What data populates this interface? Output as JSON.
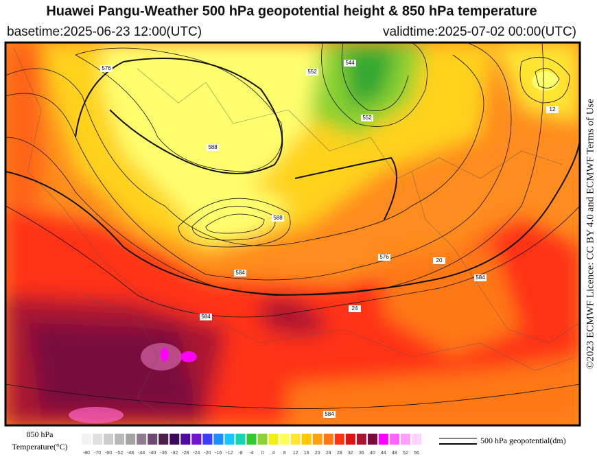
{
  "header": {
    "title": "Huawei Pangu-Weather 500 hPa geopotential height & 850 hPa temperature",
    "basetime": "basetime:2025-06-23 12:00(UTC)",
    "validtime": "validtime:2025-07-02 00:00(UTC)"
  },
  "side_note": "©2023 ECMWF Licence: CC BY 4.0 and ECMWF Terms of Use",
  "map": {
    "contour_labels": [
      "584",
      "588",
      "576",
      "552",
      "584",
      "588",
      "584",
      "12",
      "20",
      "24",
      "584",
      "576",
      "552",
      "544"
    ]
  },
  "colorbar": {
    "title_line1": "850 hPa",
    "title_line2": "Temperature(°C)",
    "ticks": [
      "-80",
      "-70",
      "-60",
      "-52",
      "-48",
      "-44",
      "-40",
      "-36",
      "-32",
      "-28",
      "-24",
      "-20",
      "-16",
      "-12",
      "-8",
      "-4",
      "0",
      "4",
      "8",
      "12",
      "16",
      "20",
      "24",
      "28",
      "32",
      "36",
      "40",
      "44",
      "48",
      "52",
      "56"
    ],
    "colors": [
      "#f2f2f2",
      "#e0e0e0",
      "#cccccc",
      "#b8b8b8",
      "#a4a4a4",
      "#8e7b8e",
      "#6e4a6e",
      "#4b1e4b",
      "#3c0a5a",
      "#500aa0",
      "#7014d2",
      "#3c3cff",
      "#1e8cff",
      "#14c8ff",
      "#14d2b4",
      "#32c832",
      "#8cd232",
      "#f0f014",
      "#ffff5a",
      "#ffe632",
      "#ffc800",
      "#ffa014",
      "#ff7814",
      "#ff3214",
      "#dc1414",
      "#aa1432",
      "#780a3c",
      "#ff00ff",
      "#ff64ff",
      "#ffa0ff",
      "#ffd2ff"
    ]
  },
  "line_legend": "500 hPa geopotential(dm)"
}
